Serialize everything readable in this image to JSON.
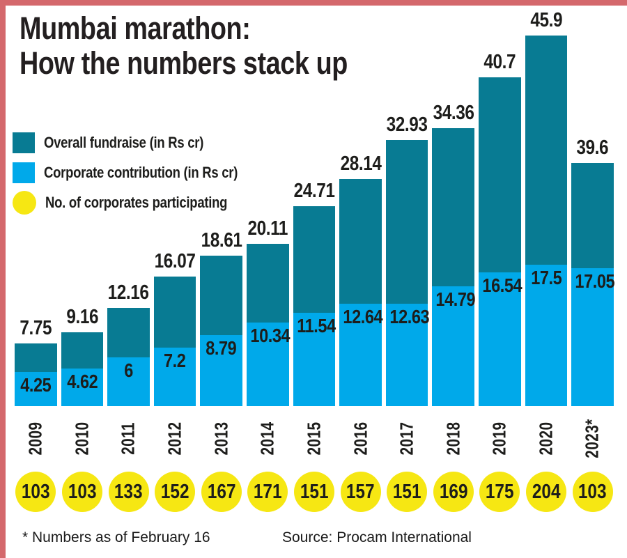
{
  "title": {
    "line1": "Mumbai marathon:",
    "line2": "How the numbers stack up"
  },
  "legend": [
    {
      "label": "Overall fundraise (in Rs cr)",
      "swatch": "square",
      "color": "#087b93"
    },
    {
      "label": "Corporate contribution (in Rs cr)",
      "swatch": "square",
      "color": "#00a9ea"
    },
    {
      "label": "No. of corporates participating",
      "swatch": "circle",
      "color": "#f6e713"
    }
  ],
  "footer": {
    "footnote": "* Numbers as of February 16",
    "source": "Source: Procam International"
  },
  "colors": {
    "overall_fundraise": "#087b93",
    "corporate_contribution": "#00a9ea",
    "participants_badge": "#f6e713",
    "card_border": "#d4686c",
    "text": "#1d1d1b"
  },
  "chart_data": {
    "type": "bar",
    "subtype": "overlay-stacked-columns",
    "title": "Mumbai marathon: How the numbers stack up",
    "categories": [
      "2009",
      "2010",
      "2011",
      "2012",
      "2013",
      "2014",
      "2015",
      "2016",
      "2017",
      "2018",
      "2019",
      "2020",
      "2023*"
    ],
    "series": [
      {
        "name": "Overall fundraise (in Rs cr)",
        "color": "#087b93",
        "values": [
          7.75,
          9.16,
          12.16,
          16.07,
          18.61,
          20.11,
          24.71,
          28.14,
          32.93,
          34.36,
          40.7,
          45.9,
          39.6
        ]
      },
      {
        "name": "Corporate contribution (in Rs cr)",
        "color": "#00a9ea",
        "values": [
          4.25,
          4.62,
          6,
          7.2,
          8.79,
          10.34,
          11.54,
          12.64,
          12.63,
          14.79,
          16.54,
          17.5,
          17.05
        ]
      },
      {
        "name": "No. of corporates participating",
        "color": "#f6e713",
        "values": [
          103,
          103,
          133,
          152,
          167,
          171,
          151,
          157,
          151,
          169,
          175,
          204,
          103
        ]
      }
    ],
    "value_labels": true,
    "grid": false,
    "legend_position": "top-left",
    "footnote": "* Numbers as of February 16",
    "source": "Source: Procam International"
  }
}
